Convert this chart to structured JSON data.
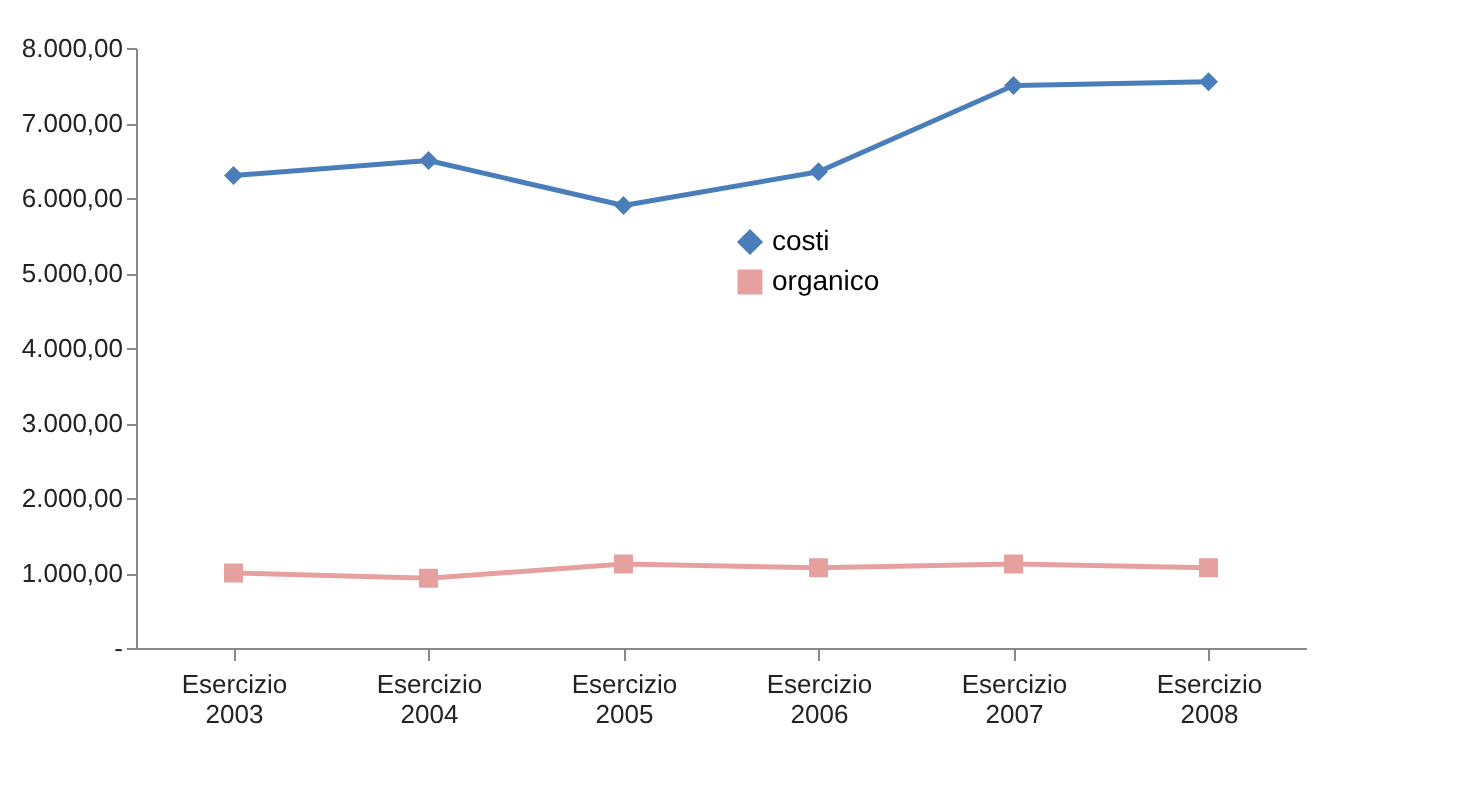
{
  "chart_data": {
    "type": "line",
    "categories": [
      "Esercizio 2003",
      "Esercizio 2004",
      "Esercizio 2005",
      "Esercizio 2006",
      "Esercizio 2007",
      "Esercizio 2008"
    ],
    "series": [
      {
        "name": "costi",
        "color": "#4a7ebb",
        "marker": "diamond",
        "values": [
          6300,
          6500,
          5900,
          6350,
          7500,
          7550
        ]
      },
      {
        "name": "organico",
        "color": "#e6a0a0",
        "marker": "square",
        "values": [
          1000,
          930,
          1120,
          1070,
          1120,
          1070
        ]
      }
    ],
    "ylim": [
      0,
      8000
    ],
    "yticks": [
      {
        "value": 0,
        "label": "-"
      },
      {
        "value": 1000,
        "label": "1.000,00"
      },
      {
        "value": 2000,
        "label": "2.000,00"
      },
      {
        "value": 3000,
        "label": "3.000,00"
      },
      {
        "value": 4000,
        "label": "4.000,00"
      },
      {
        "value": 5000,
        "label": "5.000,00"
      },
      {
        "value": 6000,
        "label": "6.000,00"
      },
      {
        "value": 7000,
        "label": "7.000,00"
      },
      {
        "value": 8000,
        "label": "8.000,00"
      }
    ],
    "grid": false,
    "legend": "top right",
    "line_style": "solid"
  }
}
